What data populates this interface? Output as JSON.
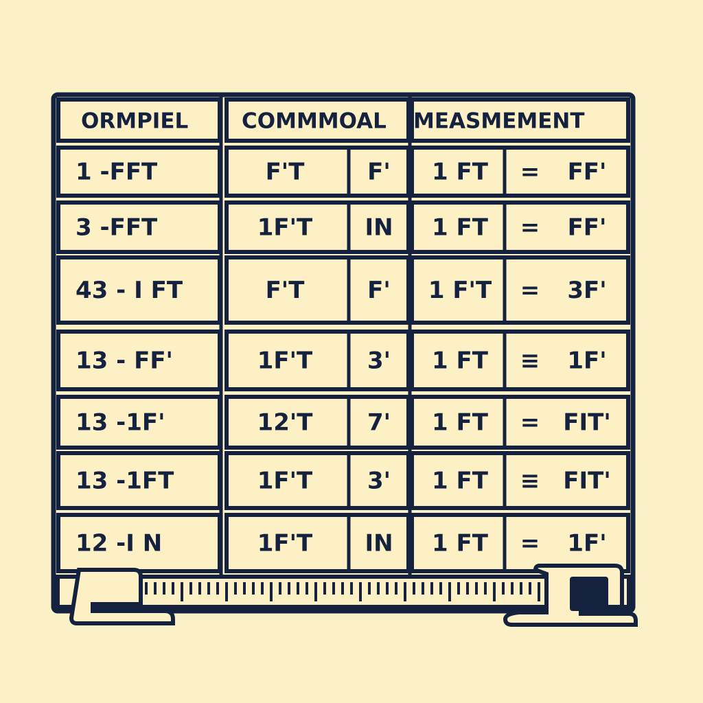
{
  "header": [
    "ORMPIEL",
    "COMMMOAL",
    "MEASMEMENT"
  ],
  "rows": [
    [
      "1 -FFT",
      "F'T",
      "F'",
      "1 FT",
      "=",
      "FF'"
    ],
    [
      "3 -FFT",
      "1F'T",
      "IN",
      "1 FT",
      "=",
      "FF'"
    ],
    [
      "43 - I FT",
      "F'T",
      "F'",
      "1 F'T",
      "=",
      "3F'"
    ],
    [
      "13 - FF'",
      "1F'T",
      "3'",
      "1 FT",
      "≡",
      "1F'"
    ],
    [
      "13 -1F'",
      "12'T",
      "7'",
      "1 FT",
      "=",
      "FIT'"
    ],
    [
      "13 -1FT",
      "1F'T",
      "3'",
      "1 FT",
      "≡",
      "FIT'"
    ],
    [
      "12 -I N",
      "1F'T",
      "IN",
      "1 FT",
      "=",
      "1F'"
    ]
  ]
}
